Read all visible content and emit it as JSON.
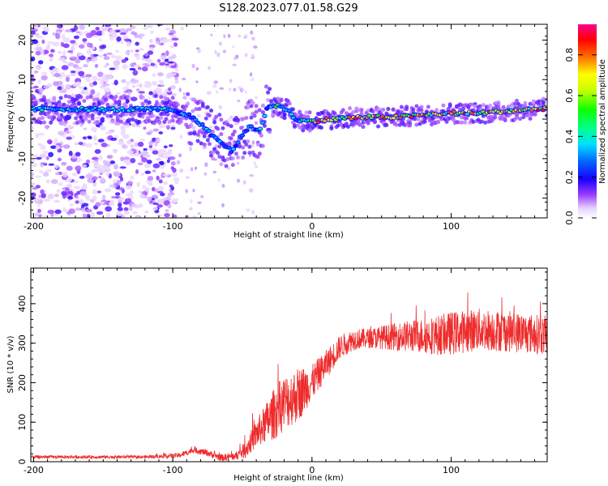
{
  "title": "S128.2023.077.01.58.G29",
  "chart_data": [
    {
      "type": "heatmap",
      "xlabel": "Height of straight line (km)",
      "ylabel": "Frequency (Hz)",
      "xlim": [
        -202,
        169
      ],
      "ylim": [
        -25,
        24
      ],
      "x_ticks": [
        -200,
        -100,
        0,
        100
      ],
      "y_ticks": [
        -20,
        -10,
        0,
        10,
        20
      ],
      "grid": false,
      "colorbar": {
        "label": "Normalized spectral amplitude",
        "range": [
          0.0,
          0.95
        ],
        "ticks": [
          0.0,
          0.2,
          0.4,
          0.6,
          0.8
        ],
        "colors": [
          "#ffffff",
          "#c8a0ff",
          "#8000ff",
          "#0000ff",
          "#00c0ff",
          "#00ff80",
          "#00ff00",
          "#c0ff00",
          "#ffff00",
          "#ff8000",
          "#ff0000",
          "#ff0080"
        ]
      },
      "ridge": {
        "x": [
          -200,
          -180,
          -160,
          -140,
          -120,
          -105,
          -95,
          -85,
          -75,
          -65,
          -58,
          -52,
          -45,
          -38,
          -32,
          -25,
          -18,
          -12,
          -5,
          0,
          20,
          40,
          60,
          80,
          100,
          120,
          140,
          160,
          169
        ],
        "y": [
          2.5,
          2.6,
          2.5,
          2.4,
          2.5,
          2.4,
          1.5,
          0.5,
          -3,
          -6,
          -8,
          -5,
          -2,
          -3,
          3,
          3.5,
          2.5,
          0,
          -0.5,
          -0.5,
          0.2,
          0.5,
          0.5,
          1,
          1.5,
          1.5,
          2,
          2.5,
          2.8
        ]
      }
    },
    {
      "type": "line",
      "xlabel": "Height of straight line (km)",
      "ylabel": "SNR (10 * v/v)",
      "xlim": [
        -202,
        169
      ],
      "ylim": [
        0,
        490
      ],
      "x_ticks": [
        -200,
        -100,
        0,
        100
      ],
      "y_ticks": [
        0,
        100,
        200,
        300,
        400
      ],
      "grid": false,
      "series": [
        {
          "color": "#ee2c2c",
          "envelope": {
            "x": [
              -202,
              -120,
              -95,
              -85,
              -75,
              -65,
              -55,
              -48,
              -40,
              -30,
              -20,
              -10,
              0,
              10,
              20,
              30,
              50,
              70,
              90,
              100,
              120,
              140,
              169
            ],
            "y": [
              12,
              12,
              16,
              30,
              22,
              10,
              14,
              30,
              70,
              110,
              150,
              170,
              200,
              245,
              290,
              310,
              315,
              318,
              320,
              325,
              335,
              330,
              320
            ]
          },
          "noise": {
            "x": [
              -202,
              -120,
              -80,
              -55,
              -40,
              -25,
              -10,
              0,
              20,
              40,
              100,
              169
            ],
            "amplitude": [
              4,
              4,
              8,
              10,
              35,
              70,
              70,
              45,
              30,
              25,
              55,
              50
            ]
          }
        }
      ]
    }
  ]
}
